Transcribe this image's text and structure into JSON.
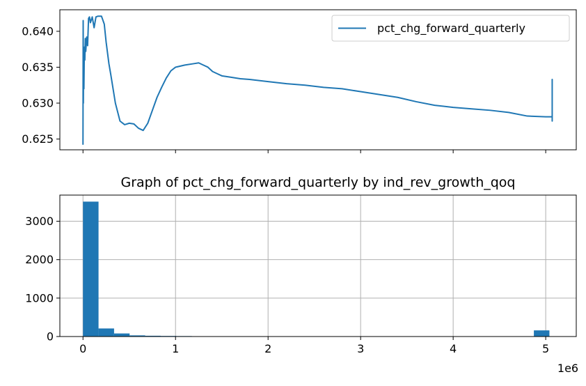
{
  "colors": {
    "series": "#1f77b4",
    "grid": "#b0b0b0",
    "axis": "#000000"
  },
  "chart_data": [
    {
      "type": "line",
      "title": "",
      "xlabel": "",
      "ylabel": "",
      "xlim": [
        -250000,
        5330000
      ],
      "ylim": [
        0.6235,
        0.643
      ],
      "yticks": [
        0.625,
        0.63,
        0.635,
        0.64
      ],
      "ytick_labels": [
        "0.625",
        "0.630",
        "0.635",
        "0.640"
      ],
      "xticks": [
        0,
        1000000,
        2000000,
        3000000,
        4000000,
        5000000
      ],
      "grid": false,
      "legend": {
        "placement": "top-right",
        "entries": [
          "pct_chg_forward_quarterly"
        ]
      },
      "series": [
        {
          "name": "pct_chg_forward_quarterly",
          "x": [
            0,
            2000,
            4000,
            6000,
            10000,
            15000,
            20000,
            25000,
            30000,
            40000,
            50000,
            60000,
            70000,
            80000,
            100000,
            120000,
            140000,
            160000,
            180000,
            200000,
            230000,
            250000,
            280000,
            300000,
            350000,
            400000,
            450000,
            500000,
            550000,
            600000,
            650000,
            700000,
            750000,
            800000,
            850000,
            900000,
            950000,
            1000000,
            1100000,
            1200000,
            1250000,
            1300000,
            1350000,
            1400000,
            1450000,
            1500000,
            1600000,
            1700000,
            1800000,
            2000000,
            2200000,
            2400000,
            2600000,
            2800000,
            3000000,
            3200000,
            3400000,
            3600000,
            3800000,
            4000000,
            4200000,
            4400000,
            4600000,
            4800000,
            5000000,
            5070000,
            5070000,
            5070000,
            5070000
          ],
          "y": [
            0.6242,
            0.6415,
            0.63,
            0.635,
            0.632,
            0.6378,
            0.636,
            0.639,
            0.6372,
            0.6392,
            0.638,
            0.6418,
            0.642,
            0.6412,
            0.642,
            0.6405,
            0.642,
            0.6421,
            0.6421,
            0.6421,
            0.641,
            0.6385,
            0.6355,
            0.634,
            0.63,
            0.6275,
            0.627,
            0.6272,
            0.6271,
            0.6265,
            0.6262,
            0.6272,
            0.629,
            0.6308,
            0.6322,
            0.6335,
            0.6345,
            0.635,
            0.6353,
            0.6355,
            0.6356,
            0.6353,
            0.635,
            0.6344,
            0.6341,
            0.6338,
            0.6336,
            0.6334,
            0.6333,
            0.633,
            0.6327,
            0.6325,
            0.6322,
            0.632,
            0.6316,
            0.6312,
            0.6308,
            0.6302,
            0.6297,
            0.6294,
            0.6292,
            0.629,
            0.6287,
            0.6282,
            0.6281,
            0.6281,
            0.6275,
            0.6333,
            0.6281
          ]
        }
      ]
    },
    {
      "type": "bar",
      "title": "Graph of pct_chg_forward_quarterly by ind_rev_growth_qoq",
      "xlabel": "",
      "ylabel": "",
      "xlim": [
        -250000,
        5330000
      ],
      "ylim": [
        0,
        3680
      ],
      "xticks": [
        0,
        1000000,
        2000000,
        3000000,
        4000000,
        5000000
      ],
      "xtick_labels": [
        "0",
        "1",
        "2",
        "3",
        "4",
        "5"
      ],
      "x_offset_label": "1e6",
      "yticks": [
        0,
        1000,
        2000,
        3000
      ],
      "ytick_labels": [
        "0",
        "1000",
        "2000",
        "3000"
      ],
      "grid": true,
      "bin_width": 168000,
      "bin_starts": [
        0,
        168000,
        336000,
        504000,
        672000,
        840000,
        1008000,
        1176000,
        1344000,
        1512000,
        1680000,
        1848000,
        2016000,
        2184000,
        2352000,
        2520000,
        2688000,
        2856000,
        3024000,
        3192000,
        3360000,
        3528000,
        3696000,
        3864000,
        4032000,
        4200000,
        4368000,
        4536000,
        4704000,
        4872000
      ],
      "values": [
        3510,
        210,
        80,
        30,
        20,
        15,
        12,
        8,
        0,
        0,
        0,
        0,
        0,
        0,
        0,
        0,
        0,
        0,
        0,
        0,
        0,
        0,
        0,
        0,
        0,
        0,
        0,
        0,
        0,
        160
      ]
    }
  ]
}
